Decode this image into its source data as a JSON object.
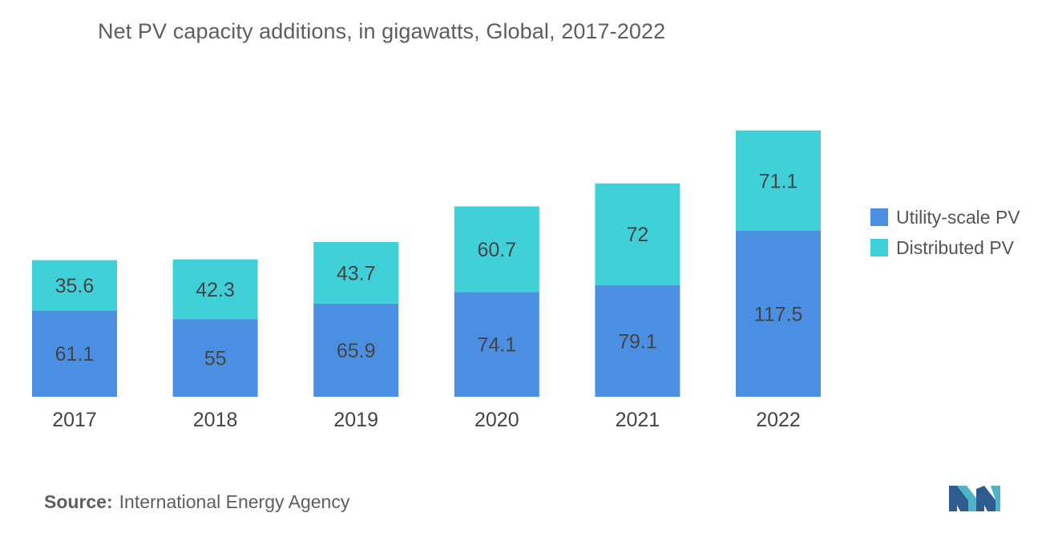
{
  "chart_data": {
    "type": "bar",
    "stacked": true,
    "title": "Net PV capacity additions, in gigawatts, Global, 2017-2022",
    "categories": [
      "2017",
      "2018",
      "2019",
      "2020",
      "2021",
      "2022"
    ],
    "series": [
      {
        "name": "Utility-scale PV",
        "color": "#4a8fe1",
        "values": [
          61.1,
          55,
          65.9,
          74.1,
          79.1,
          117.5
        ]
      },
      {
        "name": "Distributed PV",
        "color": "#40d0d8",
        "values": [
          35.6,
          42.3,
          43.7,
          60.7,
          72,
          71.1
        ]
      }
    ],
    "xlabel": "",
    "ylabel": "",
    "ylim": [
      0,
      189
    ],
    "grid": false,
    "legend_position": "right"
  },
  "source": {
    "label": "Source:",
    "text": "International Energy Agency"
  }
}
